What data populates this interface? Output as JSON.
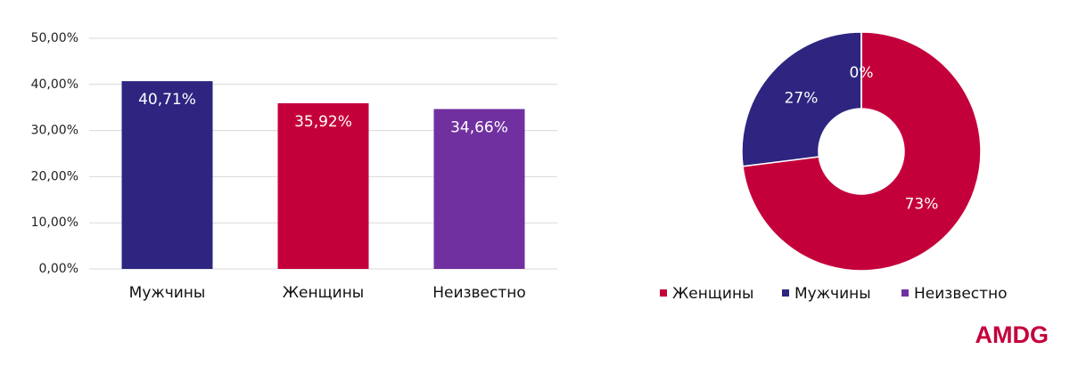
{
  "chart_data": [
    {
      "type": "bar",
      "categories": [
        "Мужчины",
        "Женщины",
        "Неизвестно"
      ],
      "values": [
        40.71,
        35.92,
        34.66
      ],
      "value_labels": [
        "40,71%",
        "35,92%",
        "34,66%"
      ],
      "colors": [
        "#2e2580",
        "#c4003b",
        "#7030a0"
      ],
      "ylim": [
        0,
        50
      ],
      "yticks": [
        {
          "value": 0,
          "label": "0,00%"
        },
        {
          "value": 10,
          "label": "10,00%"
        },
        {
          "value": 20,
          "label": "20,00%"
        },
        {
          "value": 30,
          "label": "30,00%"
        },
        {
          "value": 40,
          "label": "40,00%"
        },
        {
          "value": 50,
          "label": "50,00%"
        }
      ],
      "grid": true
    },
    {
      "type": "donut",
      "categories": [
        "Женщины",
        "Мужчины",
        "Неизвестно"
      ],
      "values": [
        73,
        27,
        0
      ],
      "value_labels": [
        "73%",
        "27%",
        "0%"
      ],
      "colors": [
        "#c4003b",
        "#2e2580",
        "#7030a0"
      ],
      "legend": "bottom"
    }
  ],
  "brand": "AMDG"
}
